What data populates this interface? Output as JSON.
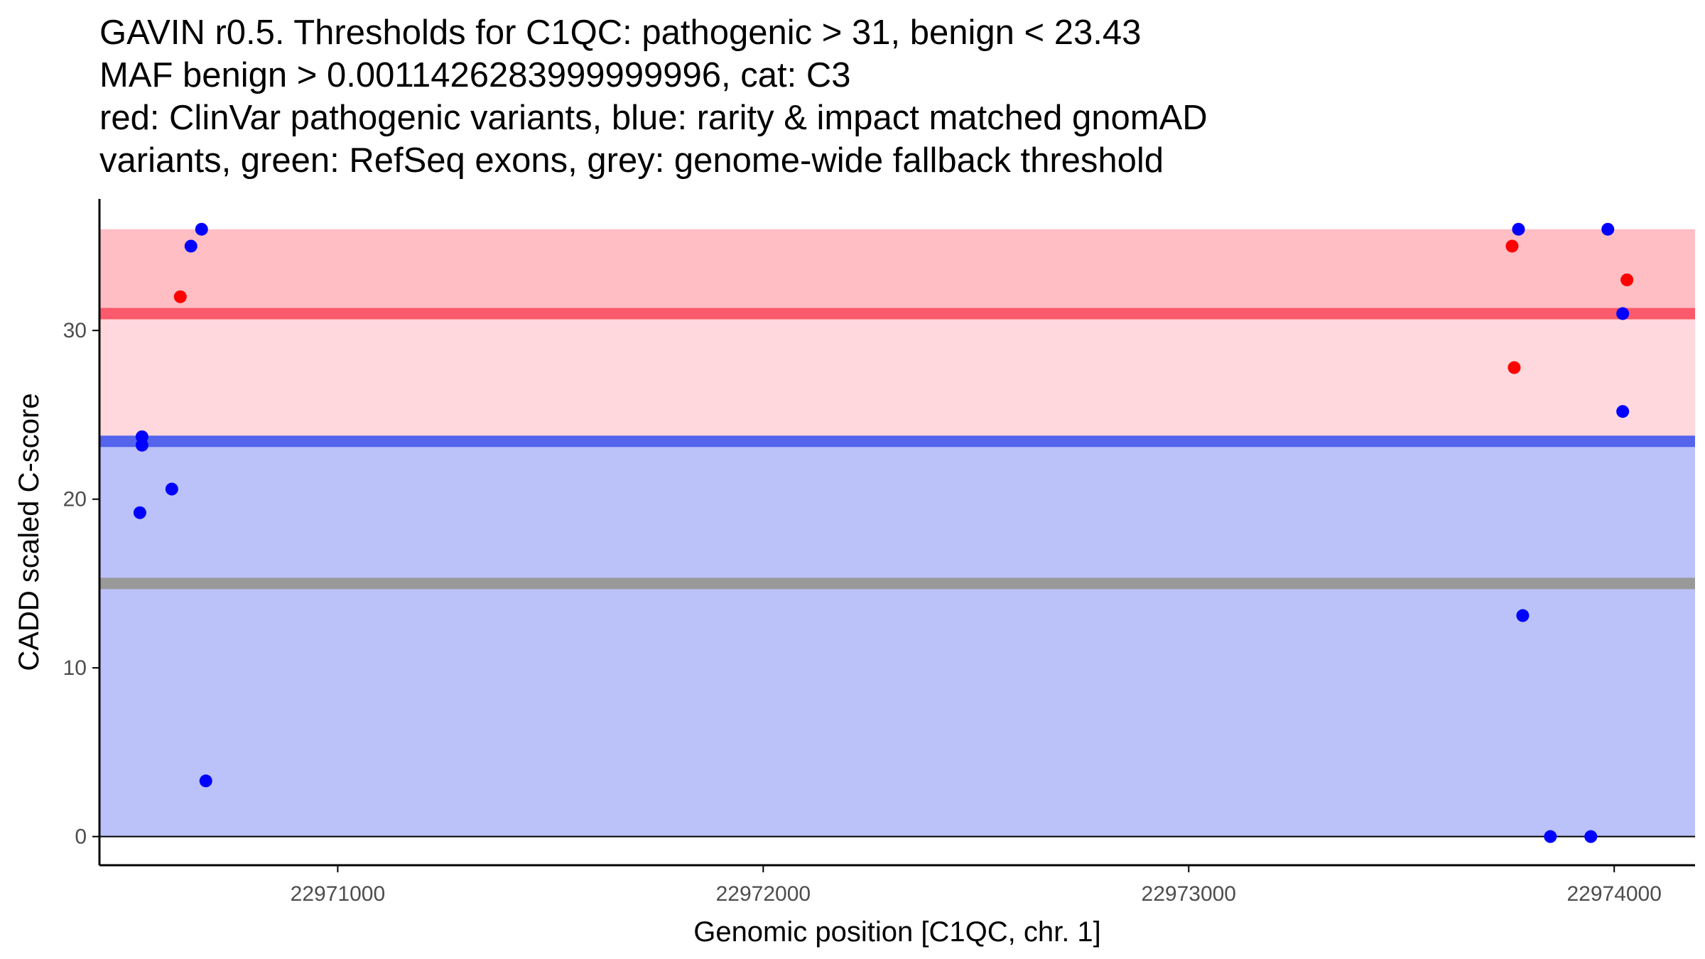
{
  "chart_data": {
    "type": "scatter",
    "title_lines": [
      "GAVIN r0.5. Thresholds for C1QC: pathogenic > 31, benign < 23.43",
      "MAF benign > 0.0011426283999999996, cat: C3",
      "red: ClinVar pathogenic variants, blue: rarity & impact matched gnomAD",
      "variants, green: RefSeq exons, grey: genome-wide fallback threshold"
    ],
    "xlabel": "Genomic position [C1QC, chr. 1]",
    "ylabel": "CADD scaled C-score",
    "xlim": [
      22970440,
      22974190
    ],
    "ylim": [
      -1.7,
      37.8
    ],
    "x_ticks": [
      22971000,
      22972000,
      22973000,
      22974000
    ],
    "x_tick_labels": [
      "22971000",
      "22972000",
      "22973000",
      "22974000"
    ],
    "y_ticks": [
      0,
      10,
      20,
      30
    ],
    "y_tick_labels": [
      "0",
      "10",
      "20",
      "30"
    ],
    "bands": [
      {
        "name": "pathogenic-extreme",
        "ymin": 31,
        "ymax": 36,
        "color": "#ffbdc4"
      },
      {
        "name": "pathogenic-zone",
        "ymin": 23.43,
        "ymax": 31,
        "color": "#ffd8de"
      },
      {
        "name": "benign-zone",
        "ymin": 0,
        "ymax": 23.43,
        "color": "#bbc2f9"
      }
    ],
    "threshold_lines": [
      {
        "name": "pathogenic-threshold",
        "y": 31,
        "color": "#fa5a6b"
      },
      {
        "name": "benign-threshold",
        "y": 23.43,
        "color": "#5564ec"
      },
      {
        "name": "fallback-threshold",
        "y": 15,
        "color": "#999999"
      }
    ],
    "series": [
      {
        "name": "ClinVar pathogenic variants",
        "color": "#ff0000",
        "points": [
          {
            "x": 22970630,
            "y": 32
          },
          {
            "x": 22973760,
            "y": 35
          },
          {
            "x": 22973765,
            "y": 27.8
          },
          {
            "x": 22974030,
            "y": 33
          }
        ]
      },
      {
        "name": "gnomAD matched variants",
        "color": "#0000ff",
        "points": [
          {
            "x": 22970540,
            "y": 23.7
          },
          {
            "x": 22970540,
            "y": 23.2
          },
          {
            "x": 22970535,
            "y": 19.2
          },
          {
            "x": 22970610,
            "y": 20.6
          },
          {
            "x": 22970655,
            "y": 35
          },
          {
            "x": 22970680,
            "y": 36
          },
          {
            "x": 22970690,
            "y": 3.3
          },
          {
            "x": 22973775,
            "y": 36
          },
          {
            "x": 22973785,
            "y": 13.1
          },
          {
            "x": 22973850,
            "y": 0
          },
          {
            "x": 22973945,
            "y": 0
          },
          {
            "x": 22973985,
            "y": 36
          },
          {
            "x": 22974020,
            "y": 31
          },
          {
            "x": 22974020,
            "y": 25.2
          }
        ]
      }
    ]
  }
}
